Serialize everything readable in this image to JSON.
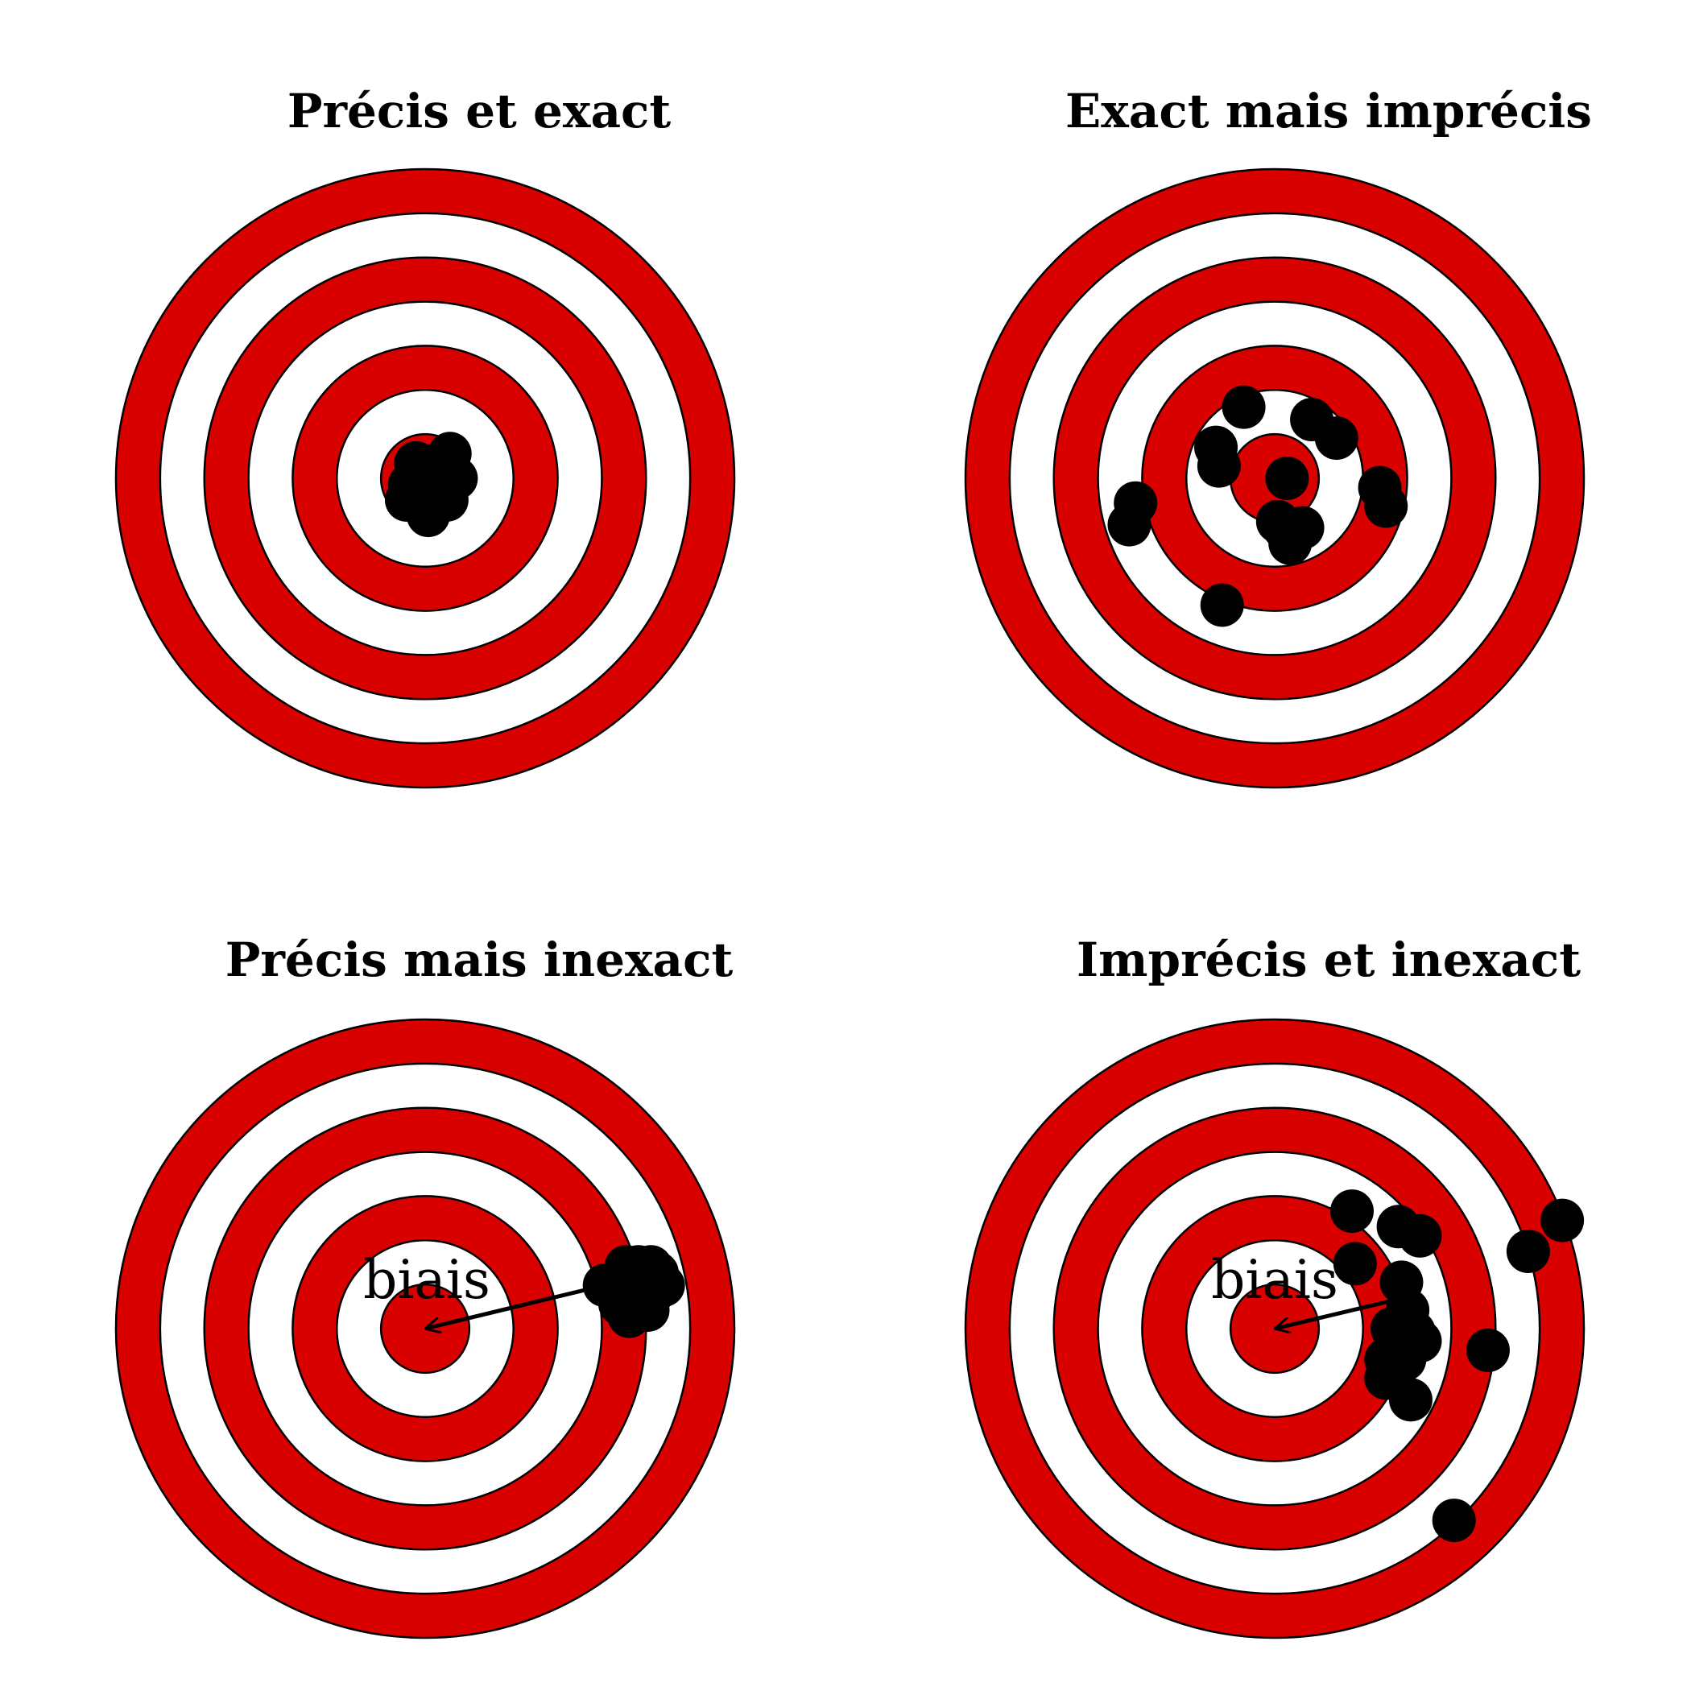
{
  "colors": {
    "ring_red": "#d90000",
    "ring_white": "#ffffff",
    "ring_outline": "#000000",
    "hit": "#000000",
    "arrow": "#000000"
  },
  "target": {
    "rings_from_outside": 7,
    "pattern": [
      "red",
      "white",
      "red",
      "white",
      "red",
      "white",
      "red"
    ]
  },
  "panels": [
    {
      "id": "precis-exact",
      "title": "Précis et exact",
      "bias_label": null,
      "hits": [
        [
          0.05,
          0.01
        ],
        [
          -0.05,
          0.02
        ],
        [
          0.02,
          -0.04
        ],
        [
          -0.03,
          -0.05
        ],
        [
          0.08,
          -0.08
        ],
        [
          0.03,
          0.06
        ],
        [
          -0.06,
          0.07
        ],
        [
          0.06,
          0.03
        ],
        [
          0.01,
          0.12
        ],
        [
          0.1,
          0.0
        ],
        [
          -0.02,
          0.0
        ],
        [
          0.04,
          -0.02
        ],
        [
          -0.04,
          0.04
        ],
        [
          0.0,
          0.05
        ],
        [
          0.07,
          0.07
        ]
      ]
    },
    {
      "id": "exact-imprecis",
      "title": "Exact mais imprécis",
      "bias_label": null,
      "hits": [
        [
          -0.1,
          -0.23
        ],
        [
          0.12,
          -0.19
        ],
        [
          0.2,
          -0.13
        ],
        [
          -0.19,
          -0.1
        ],
        [
          -0.18,
          -0.04
        ],
        [
          0.04,
          0.0
        ],
        [
          0.34,
          0.03
        ],
        [
          0.36,
          0.09
        ],
        [
          -0.45,
          0.08
        ],
        [
          -0.47,
          0.15
        ],
        [
          0.01,
          0.14
        ],
        [
          0.03,
          0.16
        ],
        [
          0.09,
          0.16
        ],
        [
          0.05,
          0.21
        ],
        [
          -0.17,
          0.41
        ]
      ]
    },
    {
      "id": "precis-inexact",
      "title": "Précis mais inexact",
      "bias_label": "biais",
      "bias_arrow": {
        "from": [
          0.62,
          -0.15
        ],
        "to": [
          0.0,
          0.0
        ]
      },
      "hits": [
        [
          0.65,
          -0.2
        ],
        [
          0.69,
          -0.2
        ],
        [
          0.73,
          -0.2
        ],
        [
          0.67,
          -0.16
        ],
        [
          0.72,
          -0.14
        ],
        [
          0.65,
          -0.1
        ],
        [
          0.74,
          -0.12
        ],
        [
          0.69,
          -0.07
        ],
        [
          0.62,
          -0.15
        ],
        [
          0.77,
          -0.14
        ],
        [
          0.72,
          -0.06
        ],
        [
          0.66,
          -0.04
        ],
        [
          0.58,
          -0.14
        ],
        [
          0.63,
          -0.08
        ],
        [
          0.75,
          -0.18
        ]
      ]
    },
    {
      "id": "imprecis-inexact",
      "title": "Imprécis et inexact",
      "bias_label": "biais",
      "bias_arrow": {
        "from": [
          0.42,
          -0.1
        ],
        "to": [
          0.0,
          0.0
        ]
      },
      "hits": [
        [
          0.25,
          -0.38
        ],
        [
          0.4,
          -0.33
        ],
        [
          0.47,
          -0.3
        ],
        [
          0.26,
          -0.21
        ],
        [
          0.41,
          -0.15
        ],
        [
          0.43,
          -0.06
        ],
        [
          0.38,
          0.0
        ],
        [
          0.45,
          0.01
        ],
        [
          0.47,
          0.04
        ],
        [
          0.36,
          0.1
        ],
        [
          0.42,
          0.1
        ],
        [
          0.69,
          0.07
        ],
        [
          0.36,
          0.16
        ],
        [
          0.44,
          0.23
        ],
        [
          0.58,
          0.62
        ],
        [
          0.82,
          -0.25
        ],
        [
          0.93,
          -0.35
        ]
      ]
    }
  ]
}
